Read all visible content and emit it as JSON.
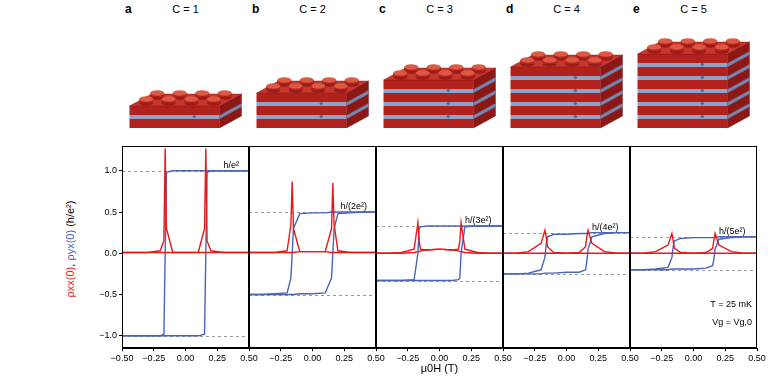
{
  "chart_data": [
    {
      "type": "line",
      "panel": "a",
      "title": "C = 1",
      "magnetic_layers": 1,
      "ylabel": "ρxx(0), ρyx(0) (h/e²)",
      "x": [
        -0.5,
        -0.4,
        -0.3,
        -0.2,
        -0.17,
        -0.16,
        -0.15,
        -0.1,
        0,
        0.1,
        0.15,
        0.16,
        0.17,
        0.2,
        0.3,
        0.4,
        0.5
      ],
      "xlim": [
        -0.5,
        0.5
      ],
      "xticks": [
        {
          "value": -0.5,
          "label": "−0.50"
        },
        {
          "value": -0.25,
          "label": "−0.25"
        },
        {
          "value": 0,
          "label": "0.00"
        },
        {
          "value": 0.25,
          "label": "0.25"
        },
        {
          "value": 0.5,
          "label": "0.50"
        }
      ],
      "ylim": [
        -1.15,
        1.3
      ],
      "yticks": [
        {
          "value": -1,
          "label": "−1.0"
        },
        {
          "value": -0.5,
          "label": "−0.5"
        },
        {
          "value": 0,
          "label": "0.0"
        },
        {
          "value": 0.5,
          "label": "0.5"
        },
        {
          "value": 1,
          "label": "1.0"
        }
      ],
      "grid": false,
      "series": [
        {
          "color": "#e41a1c",
          "values": [
            0.01,
            0.01,
            0.01,
            0.01,
            0.01,
            0.01,
            0.01,
            0.01,
            0.01,
            0.01,
            0.3,
            1.27,
            0.15,
            0.03,
            0.01,
            0.01,
            0.01
          ]
        },
        {
          "color": "#e41a1c",
          "values": [
            0.01,
            0.01,
            0.01,
            0.03,
            0.15,
            1.27,
            0.3,
            0.01,
            0.01,
            0.01,
            0.01,
            0.01,
            0.01,
            0.01,
            0.01,
            0.01,
            0.01
          ]
        },
        {
          "color": "#4a64b8",
          "values": [
            -1,
            -1,
            -1,
            -1,
            -1,
            -1,
            -1,
            -1,
            -1,
            -1,
            -0.98,
            0,
            0.98,
            1,
            1,
            1,
            1
          ]
        },
        {
          "color": "#4a64b8",
          "values": [
            -1,
            -1,
            -1,
            -1,
            -0.98,
            0,
            0.98,
            1,
            1,
            1,
            1,
            1,
            1,
            1,
            1,
            1,
            1
          ]
        }
      ],
      "reference_lines": [
        1,
        -1
      ],
      "annotations": [
        {
          "text": "h/e²",
          "x": 0.3,
          "y": 1
        }
      ]
    },
    {
      "type": "line",
      "panel": "b",
      "title": "C = 2",
      "magnetic_layers": 2,
      "x": [
        -0.5,
        -0.4,
        -0.3,
        -0.2,
        -0.17,
        -0.16,
        -0.15,
        -0.1,
        0,
        0.1,
        0.15,
        0.16,
        0.17,
        0.2,
        0.3,
        0.4,
        0.5
      ],
      "xlim": [
        -0.5,
        0.5
      ],
      "xticks": [
        {
          "value": -0.25,
          "label": "−0.25"
        },
        {
          "value": 0,
          "label": "0.00"
        },
        {
          "value": 0.25,
          "label": "0.25"
        },
        {
          "value": 0.5,
          "label": "0.50"
        }
      ],
      "ylim": [
        -1.15,
        1.3
      ],
      "yticks": [
        -1,
        -0.5,
        0,
        0.5,
        1
      ],
      "tick_labels": "x",
      "grid": false,
      "series": [
        {
          "color": "#e41a1c",
          "values": [
            0.01,
            0.01,
            0.01,
            0.01,
            0.01,
            0.01,
            0.01,
            0.02,
            0.02,
            0.02,
            0.3,
            0.85,
            0.35,
            0.03,
            0.01,
            0.01,
            0.01
          ]
        },
        {
          "color": "#e41a1c",
          "values": [
            0.01,
            0.01,
            0.01,
            0.03,
            0.35,
            0.87,
            0.3,
            0.02,
            0.02,
            0.02,
            0.01,
            0.01,
            0.01,
            0.01,
            0.01,
            0.01,
            0.01
          ]
        },
        {
          "color": "#4a64b8",
          "values": [
            -0.5,
            -0.5,
            -0.5,
            -0.5,
            -0.5,
            -0.5,
            -0.5,
            -0.49,
            -0.49,
            -0.48,
            -0.3,
            0,
            0.3,
            0.48,
            0.49,
            0.5,
            0.5
          ]
        },
        {
          "color": "#4a64b8",
          "values": [
            -0.5,
            -0.5,
            -0.49,
            -0.48,
            -0.3,
            0,
            0.3,
            0.48,
            0.49,
            0.49,
            0.5,
            0.5,
            0.5,
            0.5,
            0.5,
            0.5,
            0.5
          ]
        }
      ],
      "reference_lines": [
        0.5,
        -0.5
      ],
      "annotations": [
        {
          "text": "h/(2e²)",
          "x": 0.22,
          "y": 0.5
        }
      ]
    },
    {
      "type": "line",
      "panel": "c",
      "title": "C = 3",
      "magnetic_layers": 3,
      "xlabel": "μ0H (T)",
      "x": [
        -0.5,
        -0.4,
        -0.3,
        -0.2,
        -0.17,
        -0.16,
        -0.15,
        -0.1,
        0,
        0.1,
        0.15,
        0.16,
        0.17,
        0.2,
        0.3,
        0.4,
        0.5
      ],
      "xlim": [
        -0.5,
        0.5
      ],
      "xticks": [
        {
          "value": -0.25,
          "label": "−0.25"
        },
        {
          "value": 0,
          "label": "0.00"
        },
        {
          "value": 0.25,
          "label": "0.25"
        },
        {
          "value": 0.5,
          "label": "0.50"
        }
      ],
      "ylim": [
        -1.15,
        1.3
      ],
      "yticks": [
        -1,
        -0.5,
        0,
        0.5,
        1
      ],
      "tick_labels": "x",
      "grid": false,
      "series": [
        {
          "color": "#e41a1c",
          "values": [
            0,
            0,
            0,
            0.01,
            0.02,
            0.02,
            0.03,
            0.04,
            0.05,
            0.04,
            0.05,
            0.15,
            0.37,
            0.05,
            0.01,
            0,
            0
          ]
        },
        {
          "color": "#e41a1c",
          "values": [
            0,
            0,
            0.01,
            0.05,
            0.37,
            0.15,
            0.05,
            0.04,
            0.05,
            0.04,
            0.03,
            0.02,
            0.02,
            0.01,
            0,
            0,
            0
          ]
        },
        {
          "color": "#4a64b8",
          "values": [
            -0.33,
            -0.33,
            -0.33,
            -0.33,
            -0.33,
            -0.33,
            -0.33,
            -0.33,
            -0.33,
            -0.33,
            -0.32,
            -0.3,
            0,
            0.32,
            0.33,
            0.33,
            0.33
          ]
        },
        {
          "color": "#4a64b8",
          "values": [
            -0.33,
            -0.33,
            -0.33,
            -0.32,
            0,
            0.3,
            0.32,
            0.33,
            0.33,
            0.33,
            0.33,
            0.33,
            0.33,
            0.33,
            0.33,
            0.33,
            0.33
          ]
        }
      ],
      "reference_lines": [
        0.333,
        -0.333
      ],
      "annotations": [
        {
          "text": "h/(3e²)",
          "x": 0.2,
          "y": 0.333
        }
      ]
    },
    {
      "type": "line",
      "panel": "d",
      "title": "C = 4",
      "magnetic_layers": 4,
      "x": [
        -0.5,
        -0.4,
        -0.3,
        -0.2,
        -0.17,
        -0.16,
        -0.15,
        -0.1,
        0,
        0.1,
        0.15,
        0.16,
        0.17,
        0.2,
        0.3,
        0.4,
        0.5
      ],
      "xlim": [
        -0.5,
        0.5
      ],
      "xticks": [
        {
          "value": -0.25,
          "label": "−0.25"
        },
        {
          "value": 0,
          "label": "0.00"
        },
        {
          "value": 0.25,
          "label": "0.25"
        },
        {
          "value": 0.5,
          "label": "0.50"
        }
      ],
      "ylim": [
        -1.15,
        1.3
      ],
      "yticks": [
        -1,
        -0.5,
        0,
        0.5,
        1
      ],
      "tick_labels": "x",
      "grid": false,
      "series": [
        {
          "color": "#e41a1c",
          "values": [
            0,
            0,
            0,
            0,
            0,
            0,
            0,
            0,
            0,
            0.01,
            0.08,
            0.2,
            0.28,
            0.12,
            0.02,
            0,
            0
          ]
        },
        {
          "color": "#e41a1c",
          "values": [
            0,
            0,
            0.02,
            0.12,
            0.28,
            0.2,
            0.08,
            0.01,
            0,
            0,
            0,
            0,
            0,
            0,
            0,
            0,
            0
          ]
        },
        {
          "color": "#4a64b8",
          "values": [
            -0.25,
            -0.25,
            -0.25,
            -0.25,
            -0.24,
            -0.24,
            -0.24,
            -0.24,
            -0.23,
            -0.23,
            -0.2,
            -0.1,
            0.05,
            0.2,
            0.24,
            0.25,
            0.25
          ]
        },
        {
          "color": "#4a64b8",
          "values": [
            -0.25,
            -0.25,
            -0.24,
            -0.2,
            -0.05,
            0.1,
            0.2,
            0.23,
            0.23,
            0.24,
            0.24,
            0.24,
            0.24,
            0.25,
            0.25,
            0.25,
            0.25
          ]
        }
      ],
      "reference_lines": [
        0.25,
        -0.25
      ],
      "annotations": [
        {
          "text": "h/(4e²)",
          "x": 0.2,
          "y": 0.25
        }
      ]
    },
    {
      "type": "line",
      "panel": "e",
      "title": "C = 5",
      "magnetic_layers": 5,
      "x": [
        -0.5,
        -0.4,
        -0.3,
        -0.2,
        -0.17,
        -0.16,
        -0.15,
        -0.1,
        0,
        0.1,
        0.15,
        0.16,
        0.17,
        0.2,
        0.3,
        0.4,
        0.5
      ],
      "xlim": [
        -0.5,
        0.5
      ],
      "xticks": [
        {
          "value": -0.25,
          "label": "−0.25"
        },
        {
          "value": 0,
          "label": "0.00"
        },
        {
          "value": 0.25,
          "label": "0.25"
        },
        {
          "value": 0.5,
          "label": "0.50"
        }
      ],
      "ylim": [
        -1.15,
        1.3
      ],
      "yticks": [
        -1,
        -0.5,
        0,
        0.5,
        1
      ],
      "tick_labels": "x",
      "grid": false,
      "series": [
        {
          "color": "#e41a1c",
          "values": [
            0,
            0,
            0,
            0,
            0,
            0,
            0,
            0,
            0,
            0.01,
            0.06,
            0.15,
            0.24,
            0.1,
            0.02,
            0,
            0
          ]
        },
        {
          "color": "#e41a1c",
          "values": [
            0,
            0,
            0.02,
            0.1,
            0.24,
            0.15,
            0.06,
            0.01,
            0,
            0,
            0,
            0,
            0,
            0,
            0,
            0,
            0
          ]
        },
        {
          "color": "#4a64b8",
          "values": [
            -0.2,
            -0.2,
            -0.2,
            -0.2,
            -0.19,
            -0.19,
            -0.19,
            -0.19,
            -0.19,
            -0.18,
            -0.15,
            -0.08,
            0.05,
            0.17,
            0.19,
            0.2,
            0.2
          ]
        },
        {
          "color": "#4a64b8",
          "values": [
            -0.2,
            -0.2,
            -0.19,
            -0.17,
            -0.05,
            0.08,
            0.15,
            0.18,
            0.19,
            0.19,
            0.19,
            0.19,
            0.19,
            0.2,
            0.2,
            0.2,
            0.2
          ]
        }
      ],
      "reference_lines": [
        0.2,
        -0.2
      ],
      "annotations": [
        {
          "text": "h/(5e²)",
          "x": 0.2,
          "y": 0.2
        }
      ],
      "notes": [
        {
          "text": "T = 25 mK",
          "x": 0.46,
          "y": -0.62
        },
        {
          "text": "Vg = Vg,0",
          "x": 0.46,
          "y": -0.84
        }
      ]
    }
  ]
}
